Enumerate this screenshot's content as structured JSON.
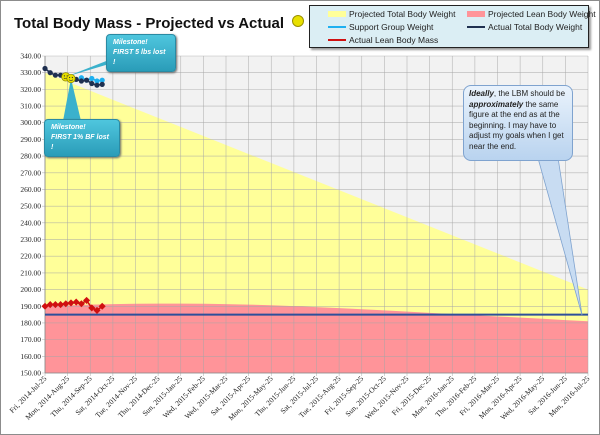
{
  "chart_data": {
    "type": "area+line",
    "title": "Total Body Mass - Projected vs Actual",
    "title_icon": "smiley-icon",
    "xlabel": "",
    "ylabel": "",
    "ylim": [
      150,
      340
    ],
    "y_ticks": [
      "150.00",
      "160.00",
      "170.00",
      "180.00",
      "190.00",
      "200.00",
      "210.00",
      "220.00",
      "230.00",
      "240.00",
      "250.00",
      "260.00",
      "270.00",
      "280.00",
      "290.00",
      "300.00",
      "310.00",
      "320.00",
      "330.00",
      "340.00"
    ],
    "x_range": [
      "2014-07-25",
      "2016-07-25"
    ],
    "x_ticks": [
      "Fri, 2014-Jul-25",
      "Mon, 2014-Aug-25",
      "Thu, 2014-Sep-25",
      "Sat, 2014-Oct-25",
      "Tue, 2014-Nov-25",
      "Thu, 2014-Dec-25",
      "Sun, 2015-Jan-25",
      "Wed, 2015-Feb-25",
      "Wed, 2015-Mar-25",
      "Sat, 2015-Apr-25",
      "Mon, 2015-May-25",
      "Thu, 2015-Jun-25",
      "Sat, 2015-Jul-25",
      "Tue, 2015-Aug-25",
      "Fri, 2015-Sep-25",
      "Sun, 2015-Oct-25",
      "Wed, 2015-Nov-25",
      "Fri, 2015-Dec-25",
      "Mon, 2016-Jan-25",
      "Thu, 2016-Feb-25",
      "Fri, 2016-Mar-25",
      "Mon, 2016-Apr-25",
      "Wed, 2016-May-25",
      "Sat, 2016-Jun-25",
      "Mon, 2016-Jul-25"
    ],
    "grid": true,
    "legend_position": "top-right",
    "colors": {
      "projected_total": "#ffff99",
      "projected_lean": "#ff9499",
      "support": "#1fb0f0",
      "actual_total": "#1f3050",
      "actual_lean": "#d01010",
      "reference": "#2e4f9a",
      "plot_bg": "#f2f2f2",
      "grid": "#a6a6a6"
    },
    "series": [
      {
        "name": "Projected Total Body Weight",
        "kind": "area",
        "x": [
          "2014-07-25",
          "2016-07-25"
        ],
        "values": [
          330,
          200
        ]
      },
      {
        "name": "Projected Lean Body Weight",
        "kind": "area",
        "x": [
          "2014-07-25",
          "2014-08-25",
          "2014-09-25",
          "2014-10-25",
          "2014-11-25",
          "2014-12-25",
          "2015-01-25",
          "2015-02-25",
          "2015-03-25",
          "2015-04-25",
          "2015-05-25",
          "2015-06-25",
          "2015-07-25",
          "2015-08-25",
          "2015-09-25",
          "2015-10-25",
          "2015-11-25",
          "2015-12-25",
          "2016-01-25",
          "2016-02-25",
          "2016-03-25",
          "2016-04-25",
          "2016-05-25",
          "2016-06-25",
          "2016-07-25"
        ],
        "values": [
          190,
          190.6,
          191,
          191.3,
          191.5,
          191.6,
          191.6,
          191.5,
          191.3,
          191,
          190.6,
          190.1,
          189.5,
          188.9,
          188.2,
          187.5,
          186.8,
          186,
          185.3,
          184.6,
          183.9,
          183.2,
          182.5,
          181.7,
          181
        ]
      },
      {
        "name": "Support Group Weight",
        "kind": "line",
        "x": [
          "2014-09-12",
          "2014-09-19",
          "2014-09-26",
          "2014-10-03",
          "2014-10-10"
        ],
        "values": [
          327,
          325.5,
          326.5,
          325,
          325.5
        ]
      },
      {
        "name": "Actual Total Body Weight",
        "kind": "line",
        "x": [
          "2014-07-25",
          "2014-08-01",
          "2014-08-08",
          "2014-08-15",
          "2014-08-22",
          "2014-08-29",
          "2014-09-05",
          "2014-09-12",
          "2014-09-19",
          "2014-09-26",
          "2014-10-03",
          "2014-10-10"
        ],
        "values": [
          332.5,
          330,
          328.5,
          328.5,
          327.5,
          326.5,
          326,
          325,
          325.5,
          323.5,
          322.5,
          323
        ]
      },
      {
        "name": "Actual Lean Body Mass",
        "kind": "line",
        "x": [
          "2014-07-25",
          "2014-08-01",
          "2014-08-08",
          "2014-08-15",
          "2014-08-22",
          "2014-08-29",
          "2014-09-05",
          "2014-09-12",
          "2014-09-19",
          "2014-09-26",
          "2014-10-03",
          "2014-10-10"
        ],
        "values": [
          190,
          191,
          191,
          191,
          191.5,
          192,
          192.5,
          191.5,
          193.5,
          189,
          187.5,
          190
        ]
      },
      {
        "kind": "reference-line",
        "values": [
          185
        ]
      }
    ],
    "annotations": [
      {
        "id": "milestone1",
        "line1": "Milestone!",
        "line2": "FIRST 5 lbs lost !",
        "x": "2014-08-22",
        "y": 327.5
      },
      {
        "id": "milestone2",
        "line1": "Milestone!",
        "line2": "FIRST  1% BF lost !",
        "x": "2014-08-29",
        "y": 326.5
      },
      {
        "id": "note",
        "strong1": "Ideally",
        "text1": ", the LBM should be ",
        "strong2": "approximately",
        "text2": " the same figure at the end as at the beginning.   I may have to adjust my goals when I get near the end."
      }
    ]
  }
}
